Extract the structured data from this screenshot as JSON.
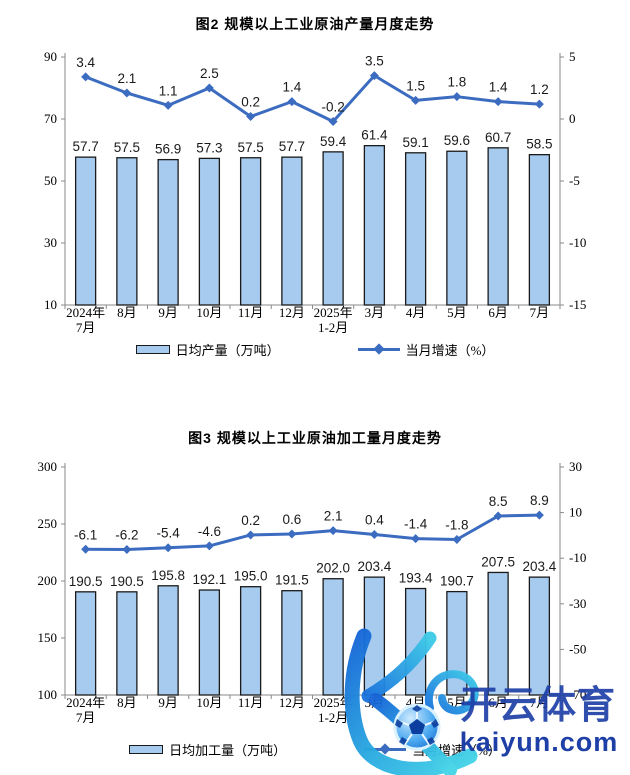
{
  "charts_meta": {
    "figure1_name": "production-chart",
    "figure2_name": "processing-chart"
  },
  "chart_style": {
    "bar_fill": "#A6CBEF",
    "bar_stroke": "#1a1a1a",
    "line_color": "#3C6CC0",
    "axis_color": "#8a8a8a",
    "text_color": "#000000",
    "label_color": "#1a1a1a"
  },
  "chart_data": [
    {
      "type": "bar",
      "combo": "bar+line",
      "title": "图2 规模以上工业原油产量月度走势",
      "categories": [
        [
          "2024年",
          "7月"
        ],
        [
          "8月"
        ],
        [
          "9月"
        ],
        [
          "10月"
        ],
        [
          "11月"
        ],
        [
          "12月"
        ],
        [
          "2025年",
          "1-2月"
        ],
        [
          "3月"
        ],
        [
          "4月"
        ],
        [
          "5月"
        ],
        [
          "6月"
        ],
        [
          "7月"
        ]
      ],
      "series": [
        {
          "name": "日均产量（万吨）",
          "type": "bar",
          "axis": "left",
          "values": [
            57.7,
            57.5,
            56.9,
            57.3,
            57.5,
            57.7,
            59.4,
            61.4,
            59.1,
            59.6,
            60.7,
            58.5
          ]
        },
        {
          "name": "当月增速（%）",
          "type": "line",
          "axis": "right",
          "values": [
            3.4,
            2.1,
            1.1,
            2.5,
            0.2,
            1.4,
            -0.2,
            3.5,
            1.5,
            1.8,
            1.4,
            1.2
          ]
        }
      ],
      "left_axis": {
        "min": 10,
        "max": 90,
        "ticks": [
          10,
          30,
          50,
          70,
          90
        ]
      },
      "right_axis": {
        "min": -15,
        "max": 5,
        "ticks": [
          -15,
          -10,
          -5,
          0,
          5
        ]
      },
      "grid": false,
      "legend_position": "bottom"
    },
    {
      "type": "bar",
      "combo": "bar+line",
      "title": "图3 规模以上工业原油加工量月度走势",
      "categories": [
        [
          "2024年",
          "7月"
        ],
        [
          "8月"
        ],
        [
          "9月"
        ],
        [
          "10月"
        ],
        [
          "11月"
        ],
        [
          "12月"
        ],
        [
          "2025年",
          "1-2月"
        ],
        [
          "3月"
        ],
        [
          "4月"
        ],
        [
          "5月"
        ],
        [
          "6月"
        ],
        [
          "7月"
        ]
      ],
      "series": [
        {
          "name": "日均加工量（万吨）",
          "type": "bar",
          "axis": "left",
          "values": [
            190.5,
            190.5,
            195.8,
            192.1,
            195.0,
            191.5,
            202.0,
            203.4,
            193.4,
            190.7,
            207.5,
            203.4
          ]
        },
        {
          "name": "当月增速（%）",
          "type": "line",
          "axis": "right",
          "values": [
            -6.1,
            -6.2,
            -5.4,
            -4.6,
            0.2,
            0.6,
            2.1,
            0.4,
            -1.4,
            -1.8,
            8.5,
            8.9
          ]
        }
      ],
      "left_axis": {
        "min": 100,
        "max": 300,
        "ticks": [
          100,
          150,
          200,
          250,
          300
        ]
      },
      "right_axis": {
        "min": -70,
        "max": 30,
        "ticks": [
          -70,
          -50,
          -30,
          -10,
          10,
          30
        ]
      },
      "grid": false,
      "legend_position": "bottom"
    }
  ],
  "watermark": {
    "brand": "开云体育",
    "domain": "kaiyun.com",
    "logo": "kaiyun-k-football-logo",
    "brand_color": "#1d3fa6",
    "logo_gradient": [
      "#1565d8",
      "#29a8e0",
      "#45d6e8"
    ]
  }
}
